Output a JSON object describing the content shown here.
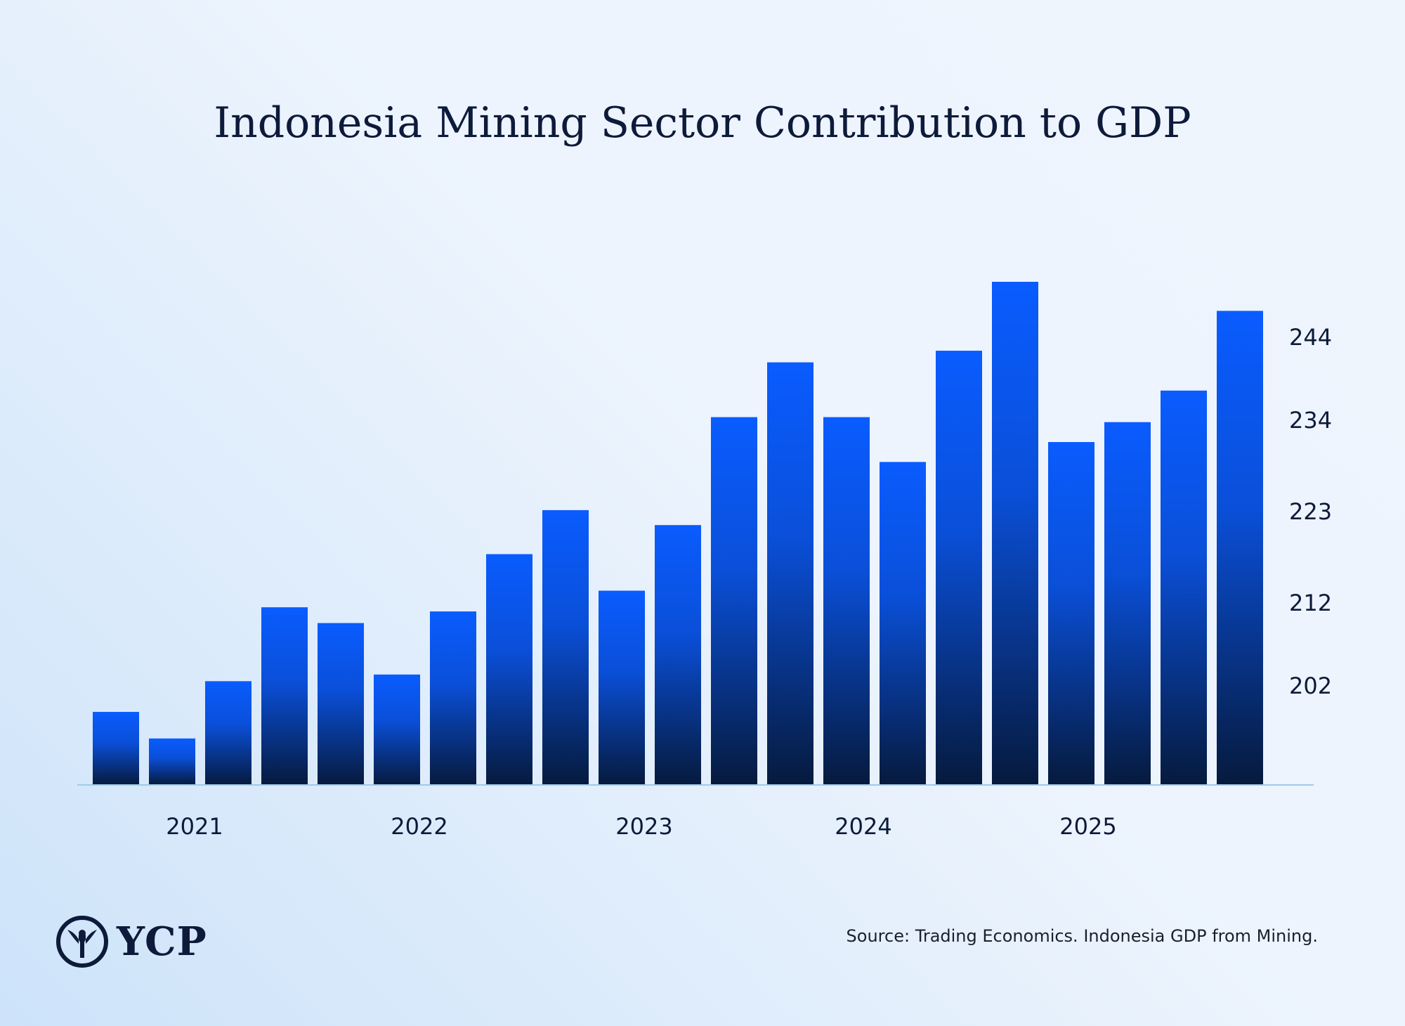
{
  "title": "Indonesia Mining Sector Contribution to GDP",
  "source": "Source: Trading Economics. Indonesia GDP from Mining.",
  "logo_text": "YCP",
  "colors": {
    "bar_top": "#0a5cff",
    "bar_mid": "#0a4fd8",
    "bar_bottom": "#061a3d",
    "axis": "#9ecbe6",
    "text": "#0d1a3a"
  },
  "chart_data": {
    "type": "bar",
    "title": "Indonesia Mining Sector Contribution to GDP",
    "values": [
      198.8,
      195.6,
      202.5,
      211.4,
      209.5,
      203.3,
      210.9,
      217.8,
      223.1,
      213.4,
      221.3,
      234.3,
      240.9,
      234.3,
      228.9,
      242.3,
      250.6,
      231.3,
      233.7,
      237.5,
      247.1
    ],
    "ylim": [
      190.0,
      250.6
    ],
    "y_axis_position": "right",
    "yticks": [
      202,
      212,
      223,
      234,
      244
    ],
    "x_tick_labels": [
      {
        "label": "2021",
        "index": 1.4
      },
      {
        "label": "2022",
        "index": 5.4
      },
      {
        "label": "2023",
        "index": 9.4
      },
      {
        "label": "2024",
        "index": 13.3
      },
      {
        "label": "2025",
        "index": 17.3
      }
    ],
    "grid": false,
    "legend": "none"
  }
}
